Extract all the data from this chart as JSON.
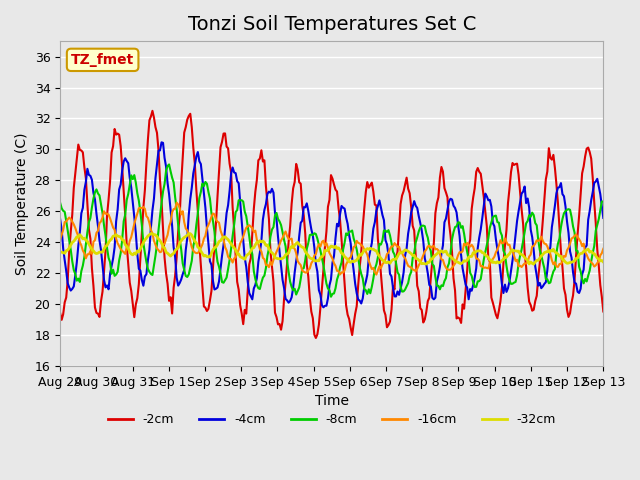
{
  "title": "Tonzi Soil Temperatures Set C",
  "xlabel": "Time",
  "ylabel": "Soil Temperature (C)",
  "ylim": [
    16,
    37
  ],
  "yticks": [
    16,
    18,
    20,
    22,
    24,
    26,
    28,
    30,
    32,
    34,
    36
  ],
  "background_color": "#e8e8e8",
  "plot_bg_color": "#e8e8e8",
  "annotation_text": "TZ_fmet",
  "annotation_bg": "#ffffcc",
  "annotation_border": "#cc9900",
  "legend_entries": [
    "-2cm",
    "-4cm",
    "-8cm",
    "-16cm",
    "-32cm"
  ],
  "line_colors": [
    "#dd0000",
    "#0000dd",
    "#00cc00",
    "#ff8800",
    "#dddd00"
  ],
  "line_widths": [
    1.5,
    1.5,
    1.5,
    1.5,
    2.0
  ],
  "x_tick_labels": [
    "Aug 29",
    "Aug 30",
    "Aug 31",
    "Sep 1",
    "Sep 2",
    "Sep 3",
    "Sep 4",
    "Sep 5",
    "Sep 6",
    "Sep 7",
    "Sep 8",
    "Sep 9",
    "Sep 10",
    "Sep 11",
    "Sep 12",
    "Sep 13"
  ],
  "days": 15,
  "title_fontsize": 14
}
